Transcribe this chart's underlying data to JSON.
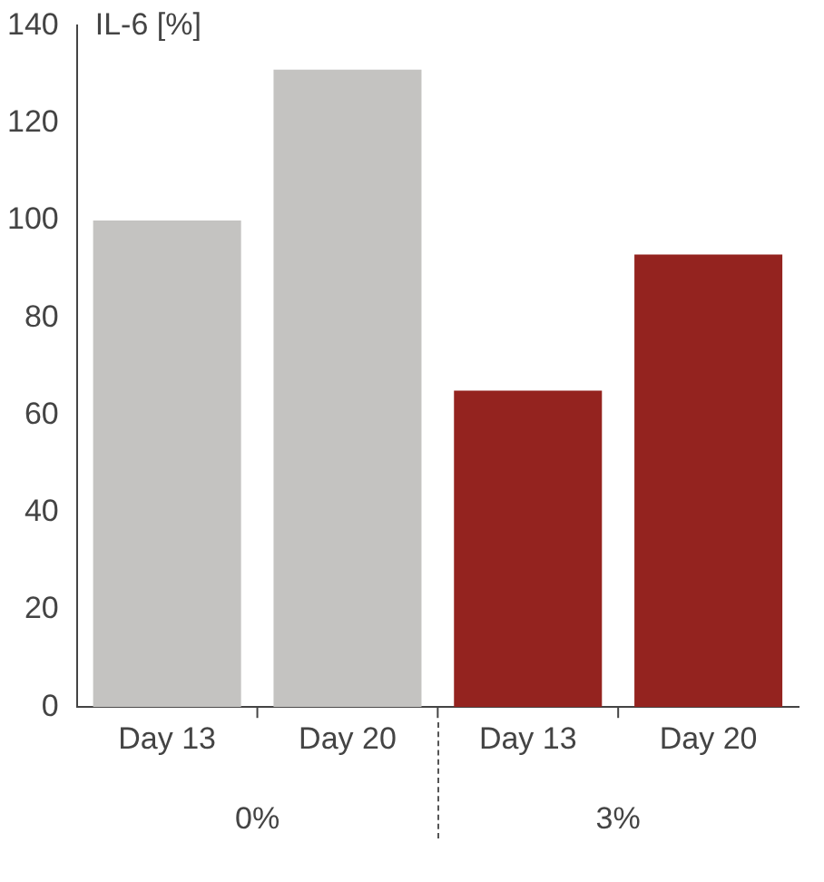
{
  "chart_data": {
    "type": "bar",
    "ylabel": "IL-6 [%]",
    "categories": [
      "Day 13",
      "Day 20",
      "Day 13",
      "Day 20"
    ],
    "values": [
      100,
      131,
      65,
      93
    ],
    "colors": [
      "#c4c3c1",
      "#c4c3c1",
      "#94231f",
      "#94231f"
    ],
    "ylim": [
      0,
      140
    ],
    "yticks": [
      0,
      20,
      40,
      60,
      80,
      100,
      120,
      140
    ],
    "grid": false,
    "legend": false,
    "annotations": [
      "0%",
      "3%"
    ]
  }
}
